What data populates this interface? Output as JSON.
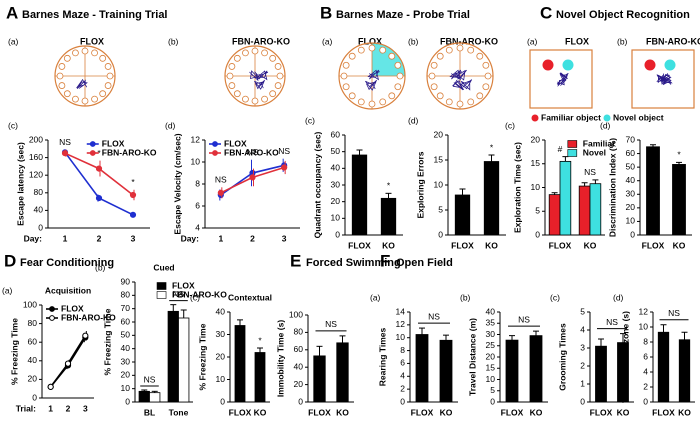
{
  "sections": [
    {
      "letter": "A",
      "title": "Barnes Maze - Training Trial"
    },
    {
      "letter": "B",
      "title": "Barnes Maze - Probe Trial"
    },
    {
      "letter": "C",
      "title": "Novel Object Recognition"
    },
    {
      "letter": "D",
      "title": "Fear Conditioning"
    },
    {
      "letter": "E",
      "title": "Forced Swimming"
    },
    {
      "letter": "F",
      "title": "Open Field"
    }
  ],
  "images": [
    {
      "sub": "(a)",
      "label": "FLOX"
    },
    {
      "sub": "(b)",
      "label": "FBN-ARO-KO"
    },
    {
      "sub": "(a)",
      "label": "FLOX"
    },
    {
      "sub": "(b)",
      "label": "FBN-ARO-KO"
    },
    {
      "sub": "(a)",
      "label": "FLOX"
    },
    {
      "sub": "(b)",
      "label": "FBN-ARO-KO"
    }
  ],
  "object_legend": [
    {
      "name": "Familiar object",
      "color": "#e8202a"
    },
    {
      "name": "Novel object",
      "color": "#3ee0e0"
    }
  ],
  "chart_data": [
    {
      "type": "line",
      "sub": "(c)",
      "ylabel": "Escape latency (sec)",
      "xlabel": "Day:",
      "categories": [
        "1",
        "2",
        "3"
      ],
      "series": [
        {
          "name": "FLOX",
          "color": "#1f2fd0",
          "values": [
            172,
            68,
            30
          ],
          "errors": [
            6,
            8,
            5
          ]
        },
        {
          "name": "FBN-ARO-KO",
          "color": "#e0303a",
          "values": [
            170,
            135,
            75
          ],
          "errors": [
            8,
            18,
            12
          ]
        }
      ],
      "annotations": [
        "NS",
        "*",
        "*"
      ],
      "ylim": [
        0,
        200
      ],
      "yticks": [
        0,
        40,
        80,
        120,
        160,
        200
      ],
      "legend": "upper right"
    },
    {
      "type": "line",
      "sub": "(d)",
      "ylabel": "Escape Velocity (cm/sec)",
      "xlabel": "Day:",
      "categories": [
        "1",
        "2",
        "3"
      ],
      "series": [
        {
          "name": "FLOX",
          "color": "#1f2fd0",
          "values": [
            7,
            9,
            9.7
          ],
          "errors": [
            0.5,
            1.2,
            0.6
          ]
        },
        {
          "name": "FBN-ARO-KO",
          "color": "#e0303a",
          "values": [
            7.2,
            8.6,
            9.5
          ],
          "errors": [
            0.5,
            0.8,
            0.6
          ]
        }
      ],
      "annotations": [
        "NS",
        "NS",
        "NS"
      ],
      "ylim": [
        4,
        12
      ],
      "yticks": [
        4,
        6,
        8,
        10,
        12
      ],
      "legend": "upper left"
    },
    {
      "type": "bar",
      "sub": "(c)",
      "ylabel": "Quadrant occupancy (sec)",
      "categories": [
        "FLOX",
        "KO"
      ],
      "color": "#000000",
      "values": [
        48,
        22
      ],
      "errors": [
        3,
        3
      ],
      "annotations": [
        null,
        "*"
      ],
      "ylim": [
        0,
        60
      ],
      "yticks": [
        0,
        10,
        20,
        30,
        40,
        50,
        60
      ]
    },
    {
      "type": "bar",
      "sub": "(d)",
      "ylabel": "Exploring Errors",
      "categories": [
        "FLOX",
        "KO"
      ],
      "color": "#000000",
      "values": [
        8,
        14.7
      ],
      "errors": [
        1.2,
        1.3
      ],
      "annotations": [
        null,
        "*"
      ],
      "ylim": [
        0,
        20
      ],
      "yticks": [
        0,
        5,
        10,
        15,
        20
      ]
    },
    {
      "type": "bar",
      "sub": "(c)",
      "ylabel": "Exploration Time (sec)",
      "categories": [
        "FLOX",
        "KO"
      ],
      "series": [
        {
          "name": "Familiar",
          "color": "#e8202a",
          "values": [
            8.5,
            10.3
          ],
          "errors": [
            0.4,
            0.7
          ]
        },
        {
          "name": "Novel",
          "color": "#3ee0e0",
          "values": [
            15.5,
            10.8
          ],
          "errors": [
            1,
            0.8
          ]
        }
      ],
      "annotations": [
        "#",
        "NS"
      ],
      "ylim": [
        0,
        20
      ],
      "yticks": [
        0,
        5,
        10,
        15,
        20
      ],
      "legend": "upper right"
    },
    {
      "type": "bar",
      "sub": "(d)",
      "ylabel": "Discrimination Index (%)",
      "categories": [
        "FLOX",
        "KO"
      ],
      "color": "#000000",
      "values": [
        65,
        52
      ],
      "errors": [
        1.5,
        1.5
      ],
      "annotations": [
        null,
        "*"
      ],
      "ylim": [
        0,
        70
      ],
      "yticks": [
        0,
        10,
        20,
        30,
        40,
        50,
        60,
        70
      ]
    },
    {
      "type": "line",
      "sub": "(a)",
      "subtitle": "Acquisition",
      "ylabel": "% Freezing Time",
      "xlabel": "Trial:",
      "categories": [
        "1",
        "2",
        "3"
      ],
      "series": [
        {
          "name": "FLOX",
          "color": "#000000",
          "marker": "filled",
          "values": [
            12,
            35,
            65
          ],
          "errors": [
            3,
            4,
            5
          ]
        },
        {
          "name": "FBN-ARO-KO",
          "color": "#000000",
          "marker": "open",
          "values": [
            12,
            37,
            67
          ],
          "errors": [
            3,
            4,
            5
          ]
        }
      ],
      "ylim": [
        0,
        100
      ],
      "yticks": [
        0,
        20,
        40,
        60,
        80,
        100
      ],
      "legend": "upper left"
    },
    {
      "type": "bar",
      "sub": "(b)",
      "subtitle": "Cued",
      "ylabel": "% Freezing Time",
      "categories": [
        "BL",
        "Tone"
      ],
      "series": [
        {
          "name": "FLOX",
          "color": "#000000",
          "values": [
            8,
            68
          ],
          "errors": [
            1,
            5
          ]
        },
        {
          "name": "FBN-ARO-KO",
          "color": "#ffffff",
          "values": [
            7,
            63
          ],
          "errors": [
            1,
            6
          ]
        }
      ],
      "brackets": [
        "NS",
        "NS"
      ],
      "ylim": [
        0,
        90
      ],
      "yticks": [
        0,
        10,
        20,
        30,
        40,
        50,
        60,
        70,
        80,
        90
      ],
      "legend": "upper right"
    },
    {
      "type": "bar",
      "sub": "(c)",
      "subtitle": "Contextual",
      "ylabel": "% Freezing Time",
      "categories": [
        "FLOX",
        "KO"
      ],
      "color": "#000000",
      "values": [
        34,
        22
      ],
      "errors": [
        2.5,
        2
      ],
      "annotations": [
        null,
        "*"
      ],
      "ylim": [
        0,
        40
      ],
      "yticks": [
        0,
        10,
        20,
        30,
        40
      ]
    },
    {
      "type": "bar",
      "ylabel": "Immobility Time (s)",
      "categories": [
        "FLOX",
        "KO"
      ],
      "color": "#000000",
      "values": [
        53,
        68
      ],
      "errors": [
        11,
        8
      ],
      "bracket_label": "NS",
      "ylim": [
        0,
        100
      ],
      "yticks": [
        0,
        20,
        40,
        60,
        80,
        100
      ]
    },
    {
      "type": "bar",
      "sub": "(a)",
      "ylabel": "Rearing Times",
      "categories": [
        "FLOX",
        "KO"
      ],
      "color": "#000000",
      "values": [
        10.5,
        9.6
      ],
      "errors": [
        1,
        0.8
      ],
      "bracket_label": "NS",
      "ylim": [
        0,
        14
      ],
      "yticks": [
        0,
        2,
        4,
        6,
        8,
        10,
        12,
        14
      ]
    },
    {
      "type": "bar",
      "sub": "(b)",
      "ylabel": "Travel Distance (m)",
      "categories": [
        "FLOX",
        "KO"
      ],
      "color": "#000000",
      "values": [
        27.5,
        29.5
      ],
      "errors": [
        2,
        2
      ],
      "bracket_label": "NS",
      "ylim": [
        0,
        40
      ],
      "yticks": [
        0,
        5,
        10,
        15,
        20,
        25,
        30,
        35,
        40
      ]
    },
    {
      "type": "bar",
      "sub": "(c)",
      "ylabel": "Grooming Times",
      "categories": [
        "FLOX",
        "KO"
      ],
      "color": "#000000",
      "values": [
        3.1,
        3.3
      ],
      "errors": [
        0.4,
        0.5
      ],
      "bracket_label": "NS",
      "ylim": [
        0,
        5
      ],
      "yticks": [
        0,
        1,
        2,
        3,
        4,
        5
      ]
    },
    {
      "type": "bar",
      "sub": "(d)",
      "ylabel": "Time in center zone (s)",
      "categories": [
        "FLOX",
        "KO"
      ],
      "color": "#000000",
      "values": [
        9.3,
        8.3
      ],
      "errors": [
        1,
        1
      ],
      "bracket_label": "NS",
      "ylim": [
        0,
        12
      ],
      "yticks": [
        0,
        2,
        4,
        6,
        8,
        10,
        12
      ]
    }
  ]
}
